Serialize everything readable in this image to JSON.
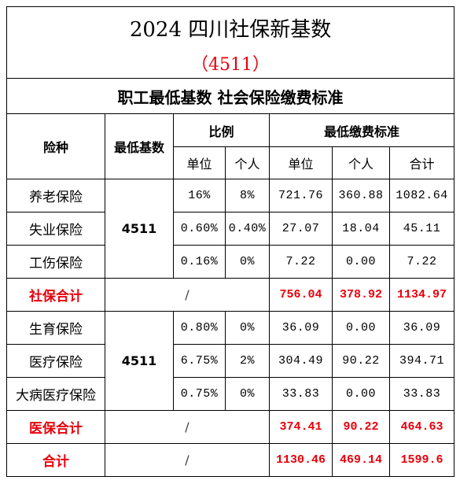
{
  "title": "2024 四川社保新基数",
  "subtitle": "（4511）",
  "section_title": "职工最低基数  社会保险缴费标准",
  "headers": {
    "type": "险种",
    "min_base": "最低基数",
    "ratio": "比例",
    "min_fee": "最低缴费标准",
    "unit": "单位",
    "personal": "个人",
    "total": "合计"
  },
  "social": {
    "base": "4511",
    "rows": [
      {
        "name": "养老保险",
        "unit_ratio": "16%",
        "personal_ratio": "8%",
        "unit_fee": "721.76",
        "personal_fee": "360.88",
        "total_fee": "1082.64"
      },
      {
        "name": "失业保险",
        "unit_ratio": "0.60%",
        "personal_ratio": "0.40%",
        "unit_fee": "27.07",
        "personal_fee": "18.04",
        "total_fee": "45.11"
      },
      {
        "name": "工伤保险",
        "unit_ratio": "0.16%",
        "personal_ratio": "0%",
        "unit_fee": "7.22",
        "personal_fee": "0.00",
        "total_fee": "7.22"
      }
    ],
    "subtotal": {
      "label": "社保合计",
      "slash": "/",
      "unit_fee": "756.04",
      "personal_fee": "378.92",
      "total_fee": "1134.97"
    }
  },
  "medical": {
    "base": "4511",
    "rows": [
      {
        "name": "生育保险",
        "unit_ratio": "0.80%",
        "personal_ratio": "0%",
        "unit_fee": "36.09",
        "personal_fee": "0.00",
        "total_fee": "36.09"
      },
      {
        "name": "医疗保险",
        "unit_ratio": "6.75%",
        "personal_ratio": "2%",
        "unit_fee": "304.49",
        "personal_fee": "90.22",
        "total_fee": "394.71"
      },
      {
        "name": "大病医疗保险",
        "unit_ratio": "0.75%",
        "personal_ratio": "0%",
        "unit_fee": "33.83",
        "personal_fee": "0.00",
        "total_fee": "33.83"
      }
    ],
    "subtotal": {
      "label": "医保合计",
      "slash": "/",
      "unit_fee": "374.41",
      "personal_fee": "90.22",
      "total_fee": "464.63"
    }
  },
  "grand_total": {
    "label": "合计",
    "slash": "/",
    "unit_fee": "1130.46",
    "personal_fee": "469.14",
    "total_fee": "1599.6"
  },
  "colors": {
    "accent_red": "#e8000b",
    "border": "#000000"
  }
}
